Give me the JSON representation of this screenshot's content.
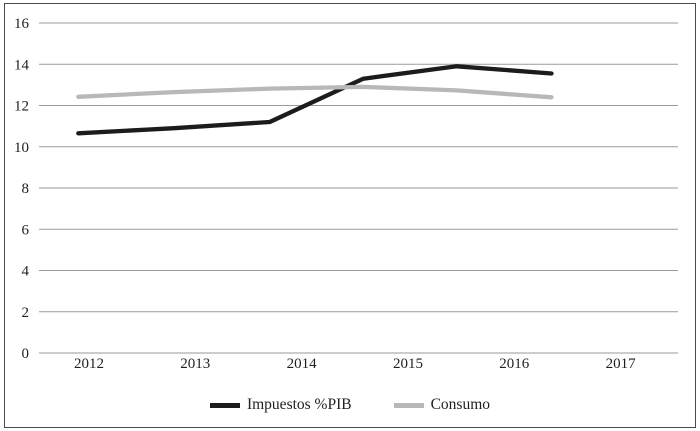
{
  "figure": {
    "background": "#ffffff",
    "border_color": "#4a4a4a"
  },
  "chart_data": {
    "type": "line",
    "title": "",
    "xlabel": "",
    "ylabel": "",
    "x": [
      2011.9,
      2012.8,
      2013.7,
      2014.58,
      2015.46,
      2016.35
    ],
    "series": [
      {
        "name": "Impuestos %PIB",
        "color": "#1c1c1c",
        "values": [
          10.65,
          10.9,
          11.2,
          13.3,
          13.9,
          13.55
        ]
      },
      {
        "name": "Consumo",
        "color": "#b8b8b8",
        "values": [
          12.42,
          12.65,
          12.82,
          12.9,
          12.73,
          12.4
        ]
      }
    ],
    "xticks": [
      2012,
      2013,
      2014,
      2015,
      2016,
      2017
    ],
    "yticks": [
      0,
      2,
      4,
      6,
      8,
      10,
      12,
      14,
      16
    ],
    "xlim": [
      2011.53,
      2017.54
    ],
    "ylim": [
      0,
      16
    ],
    "grid": "horizontal",
    "gridline_color": "#9a9a9a",
    "text_color": "#1f1f1f",
    "legend_position": "bottom-center"
  }
}
